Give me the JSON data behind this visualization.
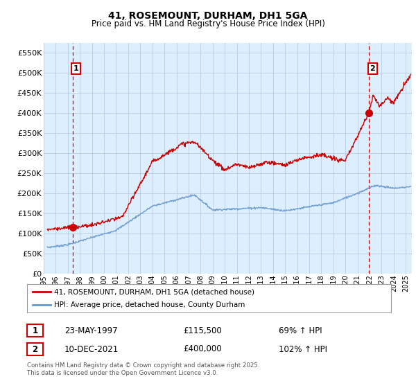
{
  "title": "41, ROSEMOUNT, DURHAM, DH1 5GA",
  "subtitle": "Price paid vs. HM Land Registry's House Price Index (HPI)",
  "ylabel_ticks": [
    "£0",
    "£50K",
    "£100K",
    "£150K",
    "£200K",
    "£250K",
    "£300K",
    "£350K",
    "£400K",
    "£450K",
    "£500K",
    "£550K"
  ],
  "ylim": [
    0,
    575000
  ],
  "xlim_start": 1995.3,
  "xlim_end": 2025.5,
  "marker1_x": 1997.39,
  "marker1_y": 115500,
  "marker2_x": 2021.94,
  "marker2_y": 400000,
  "legend_line1": "41, ROSEMOUNT, DURHAM, DH1 5GA (detached house)",
  "legend_line2": "HPI: Average price, detached house, County Durham",
  "ann1_date": "23-MAY-1997",
  "ann1_price": "£115,500",
  "ann1_hpi": "69% ↑ HPI",
  "ann2_date": "10-DEC-2021",
  "ann2_price": "£400,000",
  "ann2_hpi": "102% ↑ HPI",
  "footer": "Contains HM Land Registry data © Crown copyright and database right 2025.\nThis data is licensed under the Open Government Licence v3.0.",
  "line_color_red": "#cc0000",
  "line_color_blue": "#6699cc",
  "bg_color": "#ddeeff",
  "grid_color": "#b8cce4",
  "dashed_line_color": "#cc0000"
}
